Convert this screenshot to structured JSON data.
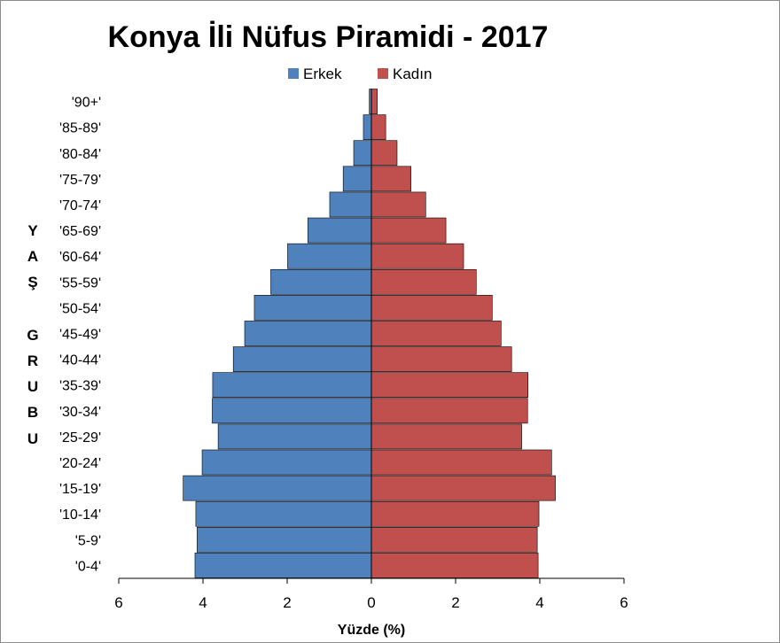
{
  "chart_data": {
    "type": "bar",
    "orientation": "horizontal",
    "title": "Konya İli Nüfus Piramidi - 2017",
    "xlabel": "Yüzde (%)",
    "ylabel": "YAŞ GRUBU",
    "ylabel_letters": [
      "Y",
      "A",
      "Ş",
      "G",
      "R",
      "U",
      "B",
      "U"
    ],
    "xlim": [
      -6,
      6
    ],
    "xticks": [
      -6,
      -4,
      -2,
      0,
      2,
      4,
      6
    ],
    "xtick_labels": [
      "6",
      "4",
      "2",
      "0",
      "2",
      "4",
      "6"
    ],
    "legend_position": "top-center",
    "categories": [
      "'0-4'",
      "'5-9'",
      "'10-14'",
      "'15-19'",
      "'20-24'",
      "'25-29'",
      "'30-34'",
      "'35-39'",
      "'40-44'",
      "'45-49'",
      "'50-54'",
      "'55-59'",
      "'60-64'",
      "'65-69'",
      "'70-74'",
      "'75-79'",
      "'80-84'",
      "'85-89'",
      "'90+'"
    ],
    "series": [
      {
        "name": "Erkek",
        "color": "#4f81bd",
        "values": [
          4.19,
          4.14,
          4.17,
          4.47,
          4.02,
          3.64,
          3.78,
          3.77,
          3.28,
          3.01,
          2.78,
          2.39,
          1.99,
          1.51,
          0.99,
          0.67,
          0.42,
          0.19,
          0.05
        ]
      },
      {
        "name": "Kadın",
        "color": "#c0504d",
        "values": [
          3.96,
          3.94,
          3.98,
          4.37,
          4.28,
          3.57,
          3.71,
          3.72,
          3.33,
          3.08,
          2.87,
          2.49,
          2.19,
          1.77,
          1.29,
          0.94,
          0.61,
          0.34,
          0.14
        ]
      }
    ]
  }
}
